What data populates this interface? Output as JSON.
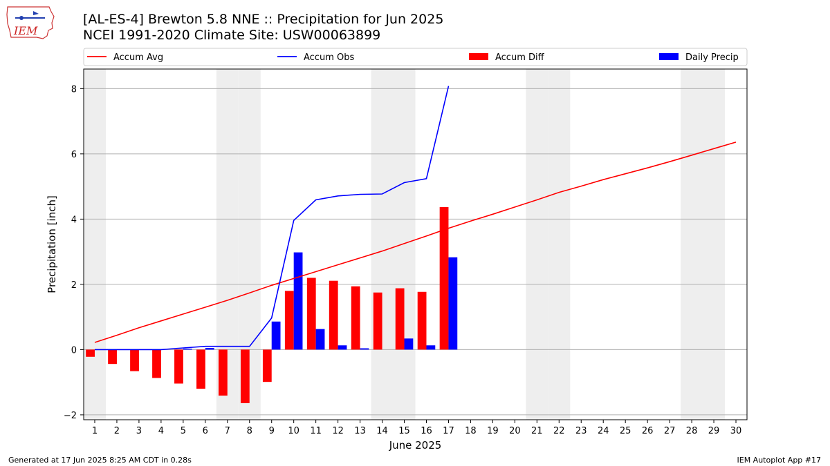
{
  "title": "[AL-ES-4] Brewton 5.8 NNE :: Precipitation for Jun 2025",
  "subtitle": "NCEI 1991-2020 Climate Site: USW00063899",
  "logo_text": "IEM",
  "footer_left": "Generated at 17 Jun 2025 8:25 AM CDT in 0.28s",
  "footer_right": "IEM Autoplot App #17",
  "colors": {
    "accum_avg": "#ff0000",
    "accum_obs": "#0000ff",
    "accum_diff": "#ff0000",
    "daily_precip": "#0000ff",
    "weekend_shade": "#eeeeee",
    "grid": "#b0b0b0"
  },
  "chart_data": {
    "type": "bar",
    "xlabel": "June 2025",
    "ylabel": "Precipitation [inch]",
    "xlim": [
      0.5,
      30.5
    ],
    "ylim": [
      -2.15,
      8.6
    ],
    "x_ticks": [
      1,
      2,
      3,
      4,
      5,
      6,
      7,
      8,
      9,
      10,
      11,
      12,
      13,
      14,
      15,
      16,
      17,
      18,
      19,
      20,
      21,
      22,
      23,
      24,
      25,
      26,
      27,
      28,
      29,
      30
    ],
    "y_ticks": [
      -2,
      0,
      2,
      4,
      6,
      8
    ],
    "grid": "horizontal",
    "legend_position": "top",
    "weekend_days": [
      1,
      7,
      8,
      14,
      15,
      21,
      22,
      28,
      29
    ],
    "series": [
      {
        "name": "Accum Avg",
        "kind": "line",
        "x": [
          1,
          2,
          3,
          4,
          5,
          6,
          7,
          8,
          9,
          10,
          11,
          12,
          13,
          14,
          15,
          16,
          17,
          18,
          19,
          20,
          21,
          22,
          23,
          24,
          25,
          26,
          27,
          28,
          29,
          30
        ],
        "values": [
          0.22,
          0.44,
          0.67,
          0.88,
          1.09,
          1.3,
          1.51,
          1.74,
          1.97,
          2.18,
          2.39,
          2.6,
          2.81,
          3.02,
          3.25,
          3.48,
          3.72,
          3.94,
          4.15,
          4.37,
          4.59,
          4.82,
          5.01,
          5.21,
          5.39,
          5.57,
          5.76,
          5.96,
          6.16,
          6.36
        ]
      },
      {
        "name": "Accum Obs",
        "kind": "line",
        "x": [
          1,
          2,
          3,
          4,
          5,
          6,
          7,
          8,
          9,
          10,
          11,
          12,
          13,
          14,
          15,
          16,
          17
        ],
        "values": [
          0.0,
          0.0,
          0.0,
          0.0,
          0.05,
          0.1,
          0.1,
          0.1,
          0.97,
          3.96,
          4.59,
          4.71,
          4.76,
          4.77,
          5.12,
          5.24,
          8.08
        ]
      },
      {
        "name": "Accum Diff",
        "kind": "bar",
        "x": [
          1,
          2,
          3,
          4,
          5,
          6,
          7,
          8,
          9,
          10,
          11,
          12,
          13,
          14,
          15,
          16,
          17
        ],
        "values": [
          -0.22,
          -0.44,
          -0.66,
          -0.87,
          -1.04,
          -1.2,
          -1.41,
          -1.64,
          -0.99,
          1.8,
          2.2,
          2.11,
          1.94,
          1.75,
          1.88,
          1.77,
          4.37
        ]
      },
      {
        "name": "Daily Precip",
        "kind": "bar",
        "x": [
          1,
          2,
          3,
          4,
          5,
          6,
          7,
          8,
          9,
          10,
          11,
          12,
          13,
          14,
          15,
          16,
          17
        ],
        "values": [
          0.0,
          0.0,
          0.0,
          0.0,
          0.03,
          0.05,
          0.0,
          0.0,
          0.86,
          2.98,
          0.63,
          0.13,
          0.04,
          0.0,
          0.34,
          0.13,
          2.83
        ]
      }
    ]
  }
}
